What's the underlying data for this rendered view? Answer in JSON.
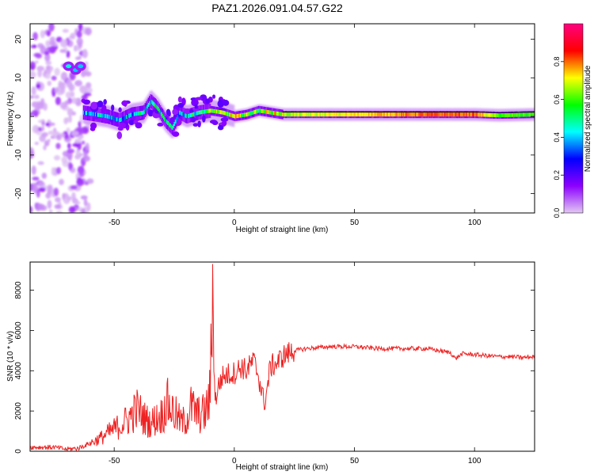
{
  "title": "PAZ1.2026.091.04.57.G22",
  "chart_data": [
    {
      "type": "heatmap",
      "name": "spectrogram",
      "xlabel": "Height of straight line (km)",
      "ylabel": "Frequency (Hz)",
      "xlim": [
        -85,
        125
      ],
      "ylim": [
        -25,
        24
      ],
      "xticks": [
        "-50",
        "0",
        "50",
        "100"
      ],
      "yticks": [
        "-20",
        "-10",
        "0",
        "10",
        "20"
      ],
      "colorbar": {
        "label": "Normalized spectral amplitude",
        "range": [
          0,
          1
        ],
        "ticks": [
          "0.0",
          "0.2",
          "0.4",
          "0.6",
          "0.8"
        ],
        "stops": [
          "#e2c9f2",
          "#8d00ff",
          "#0000ff",
          "#00ffff",
          "#00ff00",
          "#ffff00",
          "#ff0000",
          "#ff0080"
        ]
      },
      "ridge": {
        "x": [
          -63,
          -58,
          -53,
          -48,
          -43,
          -38,
          -35,
          -32,
          -29,
          -26,
          -23,
          -20,
          -15,
          -10,
          -5,
          0,
          5,
          10,
          15,
          20,
          40,
          60,
          80,
          100,
          110,
          125
        ],
        "freq": [
          1,
          0.5,
          0,
          -1,
          0.5,
          1,
          4,
          2,
          -1,
          -3,
          1,
          0,
          1,
          1.5,
          1,
          0,
          0.5,
          1.5,
          1,
          0.5,
          0.5,
          0.5,
          0.5,
          0.5,
          0.3,
          0.5
        ],
        "amplitude": [
          0.35,
          0.4,
          0.45,
          0.4,
          0.4,
          0.45,
          0.45,
          0.5,
          0.45,
          0.45,
          0.4,
          0.45,
          0.5,
          0.6,
          0.6,
          0.7,
          0.6,
          0.6,
          0.7,
          0.65,
          0.7,
          0.75,
          0.8,
          0.8,
          0.6,
          0.6
        ]
      },
      "blobs": {
        "x": [
          -69,
          -66,
          -64
        ],
        "freq": [
          13,
          12,
          13
        ],
        "amplitude": [
          0.45,
          0.4,
          0.4
        ]
      }
    },
    {
      "type": "line",
      "name": "snr",
      "xlabel": "Height of straight line (km)",
      "ylabel": "SNR (10 * v/v)",
      "xlim": [
        -85,
        125
      ],
      "ylim": [
        0,
        9400
      ],
      "xticks": [
        "-50",
        "0",
        "50",
        "100"
      ],
      "yticks": [
        "0",
        "2000",
        "4000",
        "6000",
        "8000"
      ],
      "color": "#ee2222",
      "series": [
        {
          "name": "SNR",
          "x": [
            -85,
            -75,
            -70,
            -65,
            -60,
            -55,
            -50,
            -45,
            -42,
            -40,
            -38,
            -35,
            -30,
            -28,
            -25,
            -22,
            -20,
            -18,
            -15,
            -12,
            -10,
            -9,
            -8.5,
            -8,
            -7,
            -5,
            -3,
            0,
            3,
            5,
            8,
            10,
            12,
            13,
            14,
            15,
            18,
            20,
            23,
            25,
            30,
            40,
            50,
            60,
            70,
            80,
            85,
            90,
            92,
            95,
            100,
            105,
            110,
            115,
            120,
            125
          ],
          "y": [
            200,
            200,
            100,
            150,
            400,
            700,
            1100,
            1500,
            1900,
            2100,
            1700,
            1400,
            1800,
            2400,
            1900,
            1400,
            1600,
            2200,
            1800,
            1900,
            2800,
            9300,
            4500,
            2400,
            3100,
            3700,
            3800,
            3900,
            4200,
            4000,
            4500,
            3800,
            2600,
            2500,
            3400,
            4200,
            4400,
            4700,
            4900,
            5000,
            5100,
            5200,
            5200,
            5100,
            5100,
            5100,
            5000,
            4900,
            4600,
            4850,
            4800,
            4750,
            4700,
            4700,
            4650,
            4700
          ]
        }
      ]
    }
  ]
}
